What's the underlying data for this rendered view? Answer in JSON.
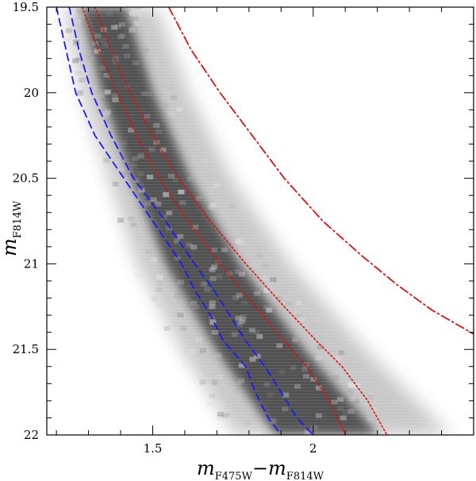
{
  "chart_data": {
    "type": "scatter",
    "subtype": "color-magnitude density diagram (Hess diagram)",
    "title": "",
    "xlabel": {
      "main": "m",
      "sub1": "F475W",
      "dash": "−",
      "main2": "m",
      "sub2": "F814W"
    },
    "ylabel": {
      "main": "m",
      "sub": "F814W"
    },
    "xlim": [
      1.17,
      2.5
    ],
    "ylim": [
      22.0,
      19.5
    ],
    "y_inverted": true,
    "x_ticks": [
      1.5,
      2.0
    ],
    "x_tick_labels": [
      "1.5",
      "2"
    ],
    "x_minor_step": 0.1,
    "y_ticks": [
      19.5,
      20.0,
      20.5,
      21.0,
      21.5,
      22.0
    ],
    "y_tick_labels": [
      "19.5",
      "20",
      "20.5",
      "21",
      "21.5",
      "22"
    ],
    "y_minor_step": 0.1,
    "grid": false,
    "legend": null,
    "density_ridge": {
      "description": "grayscale density of main-sequence stars",
      "color": "#2a2a2a",
      "points": [
        [
          1.32,
          19.5
        ],
        [
          1.39,
          20.0
        ],
        [
          1.49,
          20.5
        ],
        [
          1.61,
          21.0
        ],
        [
          1.78,
          21.5
        ],
        [
          1.98,
          22.0
        ]
      ],
      "half_width_color": [
        0.06,
        0.07,
        0.08,
        0.1,
        0.12,
        0.14
      ]
    },
    "series": [
      {
        "style": "dashed",
        "color": "#1a1aff",
        "x": [
          1.2,
          1.23,
          1.26,
          1.32,
          1.41,
          1.5,
          1.59,
          1.63,
          1.68,
          1.72,
          1.79,
          1.82,
          1.86,
          1.9
        ],
        "y": [
          19.5,
          19.75,
          20.0,
          20.25,
          20.5,
          20.75,
          21.0,
          21.15,
          21.3,
          21.45,
          21.6,
          21.75,
          21.9,
          22.0
        ]
      },
      {
        "style": "dashed",
        "color": "#1a1aff",
        "x": [
          1.24,
          1.27,
          1.31,
          1.37,
          1.44,
          1.54,
          1.63,
          1.69,
          1.74,
          1.79,
          1.85,
          1.9,
          1.95,
          2.0
        ],
        "y": [
          19.5,
          19.75,
          20.0,
          20.25,
          20.5,
          20.75,
          21.0,
          21.15,
          21.3,
          21.45,
          21.6,
          21.75,
          21.9,
          22.0
        ]
      },
      {
        "style": "dotted",
        "color": "#e01010",
        "x": [
          1.28,
          1.33,
          1.39,
          1.45,
          1.52,
          1.61,
          1.71,
          1.82,
          1.91,
          1.98,
          2.05,
          2.1
        ],
        "y": [
          19.5,
          19.75,
          20.0,
          20.25,
          20.5,
          20.75,
          21.0,
          21.25,
          21.45,
          21.6,
          21.8,
          22.0
        ]
      },
      {
        "style": "dotted",
        "color": "#e01010",
        "x": [
          1.32,
          1.37,
          1.43,
          1.5,
          1.58,
          1.68,
          1.79,
          1.91,
          2.01,
          2.09,
          2.17,
          2.23
        ],
        "y": [
          19.5,
          19.75,
          20.0,
          20.25,
          20.5,
          20.75,
          21.0,
          21.25,
          21.45,
          21.6,
          21.8,
          22.0
        ]
      },
      {
        "style": "dashdot",
        "color": "#dd1111",
        "x": [
          1.55,
          1.62,
          1.71,
          1.81,
          1.91,
          2.03,
          2.15,
          2.26,
          2.37,
          2.5
        ],
        "y": [
          19.5,
          19.75,
          20.0,
          20.25,
          20.5,
          20.75,
          20.95,
          21.12,
          21.27,
          21.41
        ]
      }
    ]
  }
}
